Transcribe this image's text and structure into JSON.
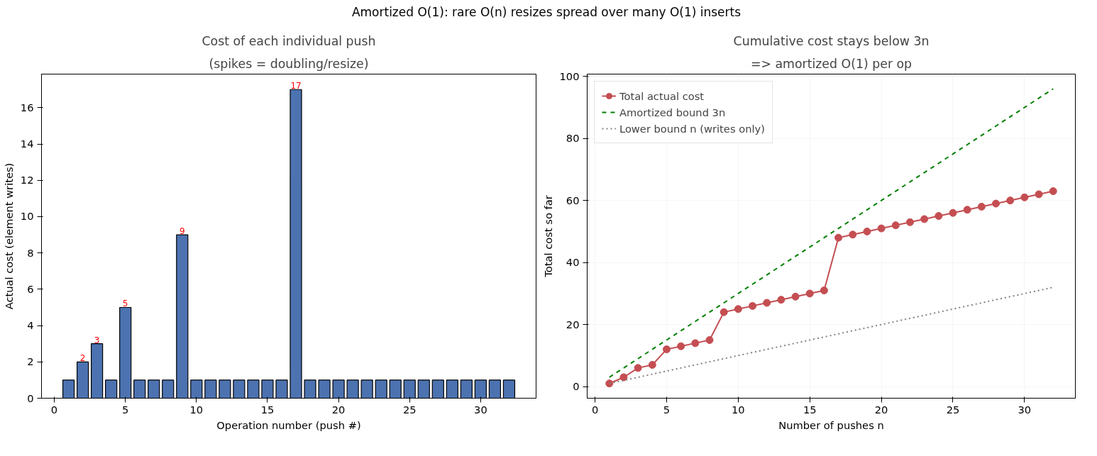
{
  "chart_data": [
    {
      "type": "bar",
      "title": "Cost of each individual push",
      "subtitle": "(spikes = doubling/resize)",
      "xlabel": "Operation number (push #)",
      "ylabel": "Actual cost (element writes)",
      "annotations": [
        "Amortized O(1): rare O(n) resizes spread over many O(1) inserts"
      ],
      "x": [
        1,
        2,
        3,
        4,
        5,
        6,
        7,
        8,
        9,
        10,
        11,
        12,
        13,
        14,
        15,
        16,
        17,
        18,
        19,
        20,
        21,
        22,
        23,
        24,
        25,
        26,
        27,
        28,
        29,
        30,
        31,
        32
      ],
      "values": [
        1,
        2,
        3,
        1,
        5,
        1,
        1,
        1,
        9,
        1,
        1,
        1,
        1,
        1,
        1,
        1,
        17,
        1,
        1,
        1,
        1,
        1,
        1,
        1,
        1,
        1,
        1,
        1,
        1,
        1,
        1,
        1
      ],
      "value_labels": [
        null,
        "2",
        "3",
        null,
        "5",
        null,
        null,
        null,
        "9",
        null,
        null,
        null,
        null,
        null,
        null,
        null,
        "17",
        null,
        null,
        null,
        null,
        null,
        null,
        null,
        null,
        null,
        null,
        null,
        null,
        null,
        null,
        null
      ],
      "color": "#4c72b0",
      "xlim": [
        -0.9,
        33.9
      ],
      "xticks": [
        0,
        5,
        10,
        15,
        20,
        25,
        30
      ],
      "ylim": [
        0,
        17.85
      ],
      "yticks": [
        0,
        2,
        4,
        6,
        8,
        10,
        12,
        14,
        16
      ]
    },
    {
      "type": "line",
      "title": "Cumulative cost stays below 3n",
      "subtitle": "=> amortized O(1) per op",
      "xlabel": "Number of pushes n",
      "ylabel": "Total cost so far",
      "x": [
        1,
        2,
        3,
        4,
        5,
        6,
        7,
        8,
        9,
        10,
        11,
        12,
        13,
        14,
        15,
        16,
        17,
        18,
        19,
        20,
        21,
        22,
        23,
        24,
        25,
        26,
        27,
        28,
        29,
        30,
        31,
        32
      ],
      "series": [
        {
          "name": "Total actual cost",
          "color": "#c44e52",
          "marker": "circle",
          "line_style": "solid",
          "values": [
            1,
            3,
            6,
            7,
            12,
            13,
            14,
            15,
            24,
            25,
            26,
            27,
            28,
            29,
            30,
            31,
            48,
            49,
            50,
            51,
            52,
            53,
            54,
            55,
            56,
            57,
            58,
            59,
            60,
            61,
            62,
            63
          ]
        },
        {
          "name": "Amortized bound 3n",
          "color": "#008000",
          "marker": "none",
          "line_style": "dashed",
          "values": [
            3,
            6,
            9,
            12,
            15,
            18,
            21,
            24,
            27,
            30,
            33,
            36,
            39,
            42,
            45,
            48,
            51,
            54,
            57,
            60,
            63,
            66,
            69,
            72,
            75,
            78,
            81,
            84,
            87,
            90,
            93,
            96
          ]
        },
        {
          "name": "Lower bound n (writes only)",
          "color": "#808080",
          "marker": "none",
          "line_style": "dotted",
          "values": [
            1,
            2,
            3,
            4,
            5,
            6,
            7,
            8,
            9,
            10,
            11,
            12,
            13,
            14,
            15,
            16,
            17,
            18,
            19,
            20,
            21,
            22,
            23,
            24,
            25,
            26,
            27,
            28,
            29,
            30,
            31,
            32
          ]
        }
      ],
      "xlim": [
        -0.55,
        33.55
      ],
      "xticks": [
        0,
        5,
        10,
        15,
        20,
        25,
        30
      ],
      "ylim": [
        -3.75,
        100.75
      ],
      "yticks": [
        0,
        20,
        40,
        60,
        80,
        100
      ],
      "grid": true,
      "legend": "top left"
    }
  ]
}
